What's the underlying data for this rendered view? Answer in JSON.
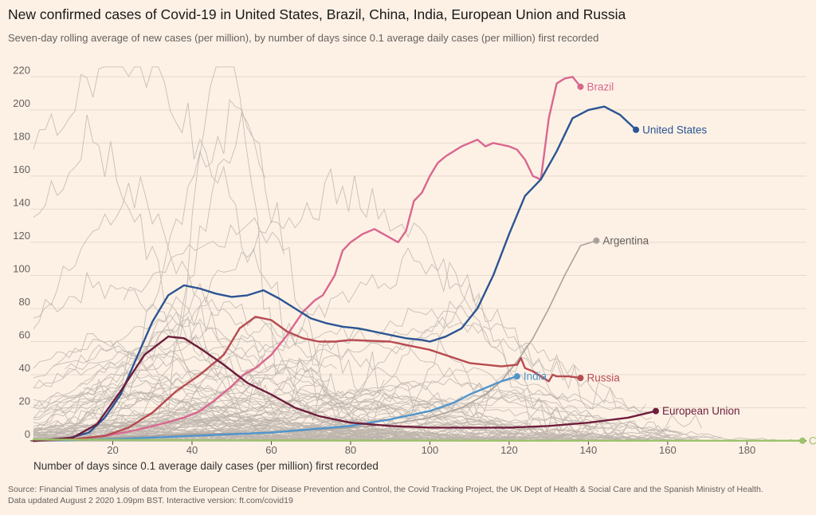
{
  "title": "New confirmed cases of Covid-19 in United States, Brazil, China, India, European Union and Russia",
  "subtitle": "Seven-day rolling average of new cases (per million), by number of days since 0.1 average daily cases (per million) first recorded",
  "source_line1": "Source: Financial Times analysis of data from the European Centre for Disease Prevention and Control, the Covid Tracking Project, the UK Dept of Health & Social Care and the Spanish Ministry of Health.",
  "source_line2": "Data updated August 2 2020 1.09pm BST. Interactive version: ft.com/covid19",
  "colors": {
    "background": "#fdf1e6",
    "grid": "#e6d9ce",
    "gray_lines": "#bdb5ad",
    "brazil": "#d9678f",
    "united_states": "#2b5593",
    "india": "#4f95cc",
    "russia": "#b84a50",
    "european_union": "#6e1d3c",
    "argentina": "#a9a29c",
    "china": "#9dc26b"
  },
  "chart_data": {
    "type": "line",
    "title": "New confirmed cases of Covid-19 in United States, Brazil, China, India, European Union and Russia",
    "subtitle": "Seven-day rolling average of new cases (per million), by number of days since 0.1 average daily cases (per million) first recorded",
    "xlabel": "Number of days since 0.1 average daily cases (per million) first recorded",
    "ylabel": "",
    "xlim": [
      0,
      195
    ],
    "ylim": [
      0,
      225
    ],
    "x_ticks": [
      20,
      40,
      60,
      80,
      100,
      120,
      140,
      160,
      180
    ],
    "y_ticks": [
      0,
      20,
      40,
      60,
      80,
      100,
      120,
      140,
      160,
      180,
      200,
      220
    ],
    "grid": true,
    "legend": "direct labels at line ends",
    "series": [
      {
        "name": "Brazil",
        "color": "#d9678f",
        "x": [
          0,
          10,
          18,
          25,
          32,
          38,
          42,
          46,
          50,
          53,
          56,
          60,
          64,
          68,
          71,
          73,
          76,
          78,
          80,
          83,
          86,
          89,
          92,
          94,
          96,
          98,
          100,
          102,
          104,
          106,
          108,
          110,
          112,
          114,
          116,
          118,
          120,
          122,
          124,
          126,
          128,
          130,
          132,
          134,
          136,
          138
        ],
        "y": [
          0,
          1,
          3,
          6,
          10,
          14,
          18,
          25,
          33,
          40,
          44,
          52,
          64,
          78,
          85,
          88,
          100,
          115,
          120,
          125,
          128,
          124,
          120,
          127,
          145,
          150,
          160,
          168,
          172,
          175,
          178,
          180,
          182,
          178,
          180,
          179,
          178,
          176,
          170,
          160,
          158,
          195,
          216,
          219,
          220,
          214
        ]
      },
      {
        "name": "United States",
        "color": "#2b5593",
        "x": [
          0,
          8,
          14,
          18,
          22,
          26,
          30,
          34,
          38,
          42,
          46,
          50,
          54,
          58,
          62,
          66,
          70,
          74,
          78,
          82,
          86,
          90,
          94,
          98,
          100,
          104,
          108,
          112,
          116,
          120,
          124,
          128,
          132,
          136,
          140,
          144,
          148,
          152
        ],
        "y": [
          0,
          1,
          5,
          14,
          28,
          50,
          72,
          88,
          94,
          92,
          89,
          87,
          88,
          91,
          86,
          80,
          74,
          71,
          69,
          68,
          66,
          64,
          62,
          61,
          60,
          63,
          68,
          80,
          100,
          125,
          148,
          158,
          175,
          195,
          200,
          202,
          197,
          188
        ]
      },
      {
        "name": "Argentina",
        "color": "#a9a29c",
        "x": [
          0,
          20,
          40,
          60,
          80,
          90,
          100,
          108,
          114,
          118,
          122,
          126,
          130,
          134,
          138,
          142
        ],
        "y": [
          0,
          2,
          4,
          5,
          8,
          10,
          14,
          20,
          28,
          36,
          48,
          62,
          80,
          100,
          118,
          121
        ]
      },
      {
        "name": "India",
        "color": "#4f95cc",
        "x": [
          0,
          20,
          40,
          60,
          80,
          90,
          100,
          106,
          110,
          114,
          118,
          122
        ],
        "y": [
          0,
          1,
          3,
          5,
          9,
          13,
          18,
          23,
          28,
          32,
          36,
          39
        ]
      },
      {
        "name": "Russia",
        "color": "#b84a50",
        "x": [
          0,
          10,
          18,
          24,
          30,
          36,
          42,
          48,
          52,
          56,
          60,
          64,
          68,
          72,
          76,
          80,
          90,
          100,
          110,
          118,
          122,
          123,
          124,
          126,
          130,
          131,
          132,
          135,
          138
        ],
        "y": [
          0,
          1,
          3,
          8,
          17,
          30,
          40,
          52,
          68,
          75,
          73,
          66,
          62,
          60,
          60,
          61,
          60,
          55,
          47,
          45,
          46,
          50,
          44,
          42,
          36,
          40,
          39,
          39,
          38
        ]
      },
      {
        "name": "European Union",
        "color": "#6e1d3c",
        "x": [
          0,
          10,
          16,
          22,
          28,
          34,
          38,
          42,
          48,
          54,
          60,
          66,
          72,
          80,
          90,
          100,
          110,
          120,
          130,
          140,
          150,
          157
        ],
        "y": [
          0,
          2,
          10,
          30,
          52,
          63,
          62,
          56,
          46,
          35,
          28,
          20,
          15,
          11,
          9,
          8,
          8,
          8,
          9,
          11,
          14,
          18
        ]
      },
      {
        "name": "China",
        "color": "#9dc26b",
        "x": [
          0,
          20,
          40,
          60,
          80,
          100,
          120,
          140,
          160,
          180,
          194
        ],
        "y": [
          0.8,
          0.6,
          0.4,
          0.3,
          0.2,
          0.2,
          0.1,
          0.1,
          0.1,
          0.1,
          0.1
        ]
      }
    ],
    "labels": {
      "brazil": "Brazil",
      "united_states": "United States",
      "argentina": "Argentina",
      "india": "India",
      "russia": "Russia",
      "european_union": "European Union",
      "china": "China"
    }
  }
}
